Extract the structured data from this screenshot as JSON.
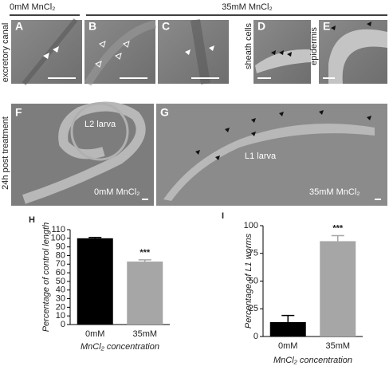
{
  "header": {
    "left": "0mM MnCl₂",
    "right": "35mM MnCl₂"
  },
  "row_labels": {
    "top": "excretory canal",
    "bottom": "24h post treatment"
  },
  "panels": {
    "A": {
      "label": "A"
    },
    "B": {
      "label": "B"
    },
    "C": {
      "label": "C"
    },
    "D": {
      "label": "D",
      "caption": "sheath cells"
    },
    "E": {
      "label": "E",
      "caption": "epidermis"
    },
    "F": {
      "label": "F",
      "inner": "L2 larva",
      "condition": "0mM MnCl₂"
    },
    "G": {
      "label": "G",
      "inner": "L1 larva",
      "condition": "35mM MnCl₂"
    }
  },
  "chart_data": [
    {
      "type": "bar",
      "panel_label": "H",
      "ylabel": "Percentage of control length",
      "xlabel": "MnCl₂ concentration",
      "categories": [
        "0mM",
        "35mM"
      ],
      "values": [
        100,
        73
      ],
      "errors": [
        1,
        2
      ],
      "colors": [
        "#000000",
        "#a6a6a6"
      ],
      "annotation": "***",
      "ylim": [
        0,
        110
      ],
      "yticks": [
        0,
        10,
        20,
        30,
        40,
        50,
        60,
        70,
        80,
        90,
        100,
        110
      ]
    },
    {
      "type": "bar",
      "panel_label": "I",
      "ylabel": "Percentage of L1 worms",
      "xlabel": "MnCl₂ concentration",
      "categories": [
        "0mM",
        "35mM"
      ],
      "values": [
        13,
        86
      ],
      "errors": [
        6,
        5
      ],
      "colors": [
        "#000000",
        "#a6a6a6"
      ],
      "annotation": "***",
      "ylim": [
        0,
        100
      ],
      "yticks": [
        0,
        25,
        50,
        75,
        100
      ]
    }
  ]
}
